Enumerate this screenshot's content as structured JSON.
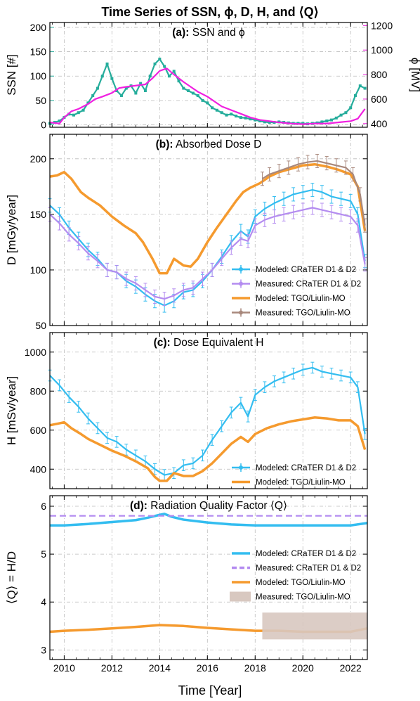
{
  "figure_title": "Time Series of SSN, ϕ, D, H, and ⟨Q⟩",
  "x_axis_label": "Time [Year]",
  "x_tick_labels": [
    "2010",
    "2012",
    "2014",
    "2016",
    "2018",
    "2020",
    "2022"
  ],
  "colors": {
    "ssn": "#26ad9c",
    "phi": "#f020e0",
    "crater_model": "#33bdf0",
    "crater_measured": "#b48cf0",
    "tgo_model": "#f59a2e",
    "tgo_measured": "#a8887c",
    "tgo_q_band": "#d8c8c0"
  },
  "chart_data": [
    {
      "type": "line",
      "panel_title_bold": "(a):",
      "panel_title_text": "SSN and ϕ",
      "xlim": [
        2009.4,
        2022.7
      ],
      "ylabel": "SSN [#]",
      "ylim": [
        -5,
        210
      ],
      "yticks": [
        0,
        50,
        100,
        150,
        200
      ],
      "y2label": "ϕ [MV]",
      "y2lim": [
        370,
        1225
      ],
      "y2ticks": [
        400,
        600,
        800,
        1000,
        1200
      ],
      "series": [
        {
          "key": "ssn",
          "axis": "left",
          "x": [
            2009.4,
            2009.6,
            2009.8,
            2010.0,
            2010.2,
            2010.4,
            2010.6,
            2010.8,
            2011.0,
            2011.2,
            2011.4,
            2011.6,
            2011.8,
            2012.0,
            2012.2,
            2012.4,
            2012.6,
            2012.8,
            2013.0,
            2013.2,
            2013.4,
            2013.6,
            2013.8,
            2014.0,
            2014.2,
            2014.4,
            2014.6,
            2014.8,
            2015.0,
            2015.2,
            2015.4,
            2015.6,
            2015.8,
            2016.0,
            2016.2,
            2016.4,
            2016.6,
            2016.8,
            2017.0,
            2017.2,
            2017.4,
            2017.6,
            2017.8,
            2018.0,
            2018.2,
            2018.4,
            2018.6,
            2018.8,
            2019.0,
            2019.2,
            2019.4,
            2019.6,
            2019.8,
            2020.0,
            2020.2,
            2020.4,
            2020.6,
            2020.8,
            2021.0,
            2021.2,
            2021.4,
            2021.6,
            2021.8,
            2022.0,
            2022.2,
            2022.4,
            2022.6
          ],
          "values": [
            3,
            5,
            8,
            15,
            22,
            20,
            25,
            30,
            45,
            60,
            75,
            100,
            125,
            95,
            70,
            60,
            75,
            80,
            65,
            85,
            70,
            100,
            125,
            135,
            120,
            100,
            110,
            90,
            75,
            70,
            65,
            60,
            50,
            45,
            35,
            30,
            25,
            20,
            22,
            18,
            15,
            14,
            12,
            10,
            8,
            6,
            5,
            5,
            6,
            5,
            4,
            3,
            3,
            3,
            2,
            3,
            4,
            6,
            8,
            10,
            14,
            20,
            25,
            35,
            60,
            80,
            75
          ]
        },
        {
          "key": "phi",
          "axis": "right",
          "x": [
            2009.4,
            2009.8,
            2010.0,
            2010.3,
            2010.6,
            2011.0,
            2011.3,
            2011.6,
            2012.0,
            2012.3,
            2012.6,
            2013.0,
            2013.4,
            2013.7,
            2014.0,
            2014.3,
            2014.6,
            2015.0,
            2015.3,
            2015.6,
            2016.0,
            2016.3,
            2016.6,
            2017.0,
            2017.4,
            2017.8,
            2018.2,
            2018.6,
            2019.0,
            2019.5,
            2020.0,
            2020.5,
            2021.0,
            2021.5,
            2022.0,
            2022.3,
            2022.6
          ],
          "values": [
            410,
            400,
            450,
            500,
            520,
            560,
            600,
            620,
            650,
            690,
            700,
            710,
            720,
            770,
            830,
            850,
            800,
            740,
            700,
            660,
            620,
            580,
            540,
            510,
            480,
            450,
            430,
            420,
            410,
            400,
            395,
            400,
            400,
            410,
            420,
            440,
            520
          ]
        }
      ]
    },
    {
      "type": "line",
      "panel_title_bold": "(b):",
      "panel_title_text": "Absorbed Dose D",
      "xlim": [
        2009.4,
        2022.7
      ],
      "ylabel": "D [mGy/year]",
      "ylim": [
        50,
        222
      ],
      "yticks": [
        50,
        100,
        150,
        200
      ],
      "legend_loc": "lower-right",
      "series": [
        {
          "name": "Modeled: CRaTER D1 & D2",
          "key": "crater_model",
          "errorbars": true,
          "x": [
            2009.4,
            2009.8,
            2010.2,
            2010.6,
            2011.0,
            2011.4,
            2011.8,
            2012.2,
            2012.6,
            2013.0,
            2013.4,
            2013.8,
            2014.2,
            2014.6,
            2015.0,
            2015.4,
            2015.8,
            2016.2,
            2016.6,
            2017.0,
            2017.4,
            2017.7,
            2018.0,
            2018.4,
            2018.8,
            2019.2,
            2019.6,
            2020.0,
            2020.4,
            2020.8,
            2021.2,
            2021.6,
            2022.0,
            2022.3,
            2022.6
          ],
          "values": [
            158,
            150,
            138,
            128,
            118,
            110,
            100,
            98,
            90,
            85,
            78,
            72,
            68,
            72,
            80,
            82,
            90,
            100,
            112,
            125,
            135,
            130,
            148,
            155,
            160,
            164,
            168,
            170,
            172,
            170,
            166,
            164,
            162,
            150,
            108
          ]
        },
        {
          "name": "Measured: CRaTER D1 & D2",
          "key": "crater_measured",
          "errorbars": true,
          "x": [
            2009.4,
            2009.8,
            2010.2,
            2010.6,
            2011.0,
            2011.4,
            2011.8,
            2012.2,
            2012.6,
            2013.0,
            2013.4,
            2013.8,
            2014.2,
            2014.6,
            2015.0,
            2015.4,
            2015.8,
            2016.2,
            2016.6,
            2017.0,
            2017.4,
            2017.7,
            2018.0,
            2018.4,
            2018.8,
            2019.2,
            2019.6,
            2020.0,
            2020.4,
            2020.8,
            2021.2,
            2021.6,
            2022.0,
            2022.3,
            2022.6
          ],
          "values": [
            150,
            142,
            132,
            124,
            115,
            108,
            100,
            98,
            92,
            88,
            82,
            76,
            74,
            77,
            82,
            84,
            92,
            100,
            110,
            120,
            128,
            126,
            140,
            145,
            148,
            150,
            152,
            154,
            156,
            154,
            152,
            150,
            148,
            140,
            105
          ]
        },
        {
          "name": "Modeled: TGO/Liulin-MO",
          "key": "tgo_model",
          "errorbars": false,
          "x": [
            2009.4,
            2009.7,
            2010.0,
            2010.3,
            2010.7,
            2011.0,
            2011.5,
            2012.0,
            2012.5,
            2013.0,
            2013.3,
            2013.7,
            2014.0,
            2014.3,
            2014.6,
            2015.0,
            2015.3,
            2015.6,
            2016.0,
            2016.4,
            2016.8,
            2017.2,
            2017.5,
            2017.8,
            2018.2,
            2018.6,
            2019.0,
            2019.5,
            2020.0,
            2020.5,
            2021.0,
            2021.5,
            2022.0,
            2022.3,
            2022.6
          ],
          "values": [
            184,
            185,
            188,
            182,
            170,
            165,
            158,
            148,
            140,
            133,
            125,
            110,
            97,
            97,
            110,
            104,
            103,
            110,
            125,
            138,
            150,
            162,
            170,
            174,
            178,
            184,
            188,
            191,
            194,
            195,
            193,
            190,
            186,
            175,
            135
          ]
        },
        {
          "name": "Measured: TGO/Liulin-MO",
          "key": "tgo_measured",
          "errorbars": true,
          "x": [
            2018.3,
            2018.6,
            2019.0,
            2019.4,
            2019.8,
            2020.2,
            2020.6,
            2021.0,
            2021.4,
            2021.8,
            2022.1,
            2022.4,
            2022.6
          ],
          "values": [
            182,
            186,
            189,
            192,
            195,
            197,
            198,
            196,
            194,
            192,
            186,
            168,
            140
          ]
        }
      ]
    },
    {
      "type": "line",
      "panel_title_bold": "(c):",
      "panel_title_text": "Dose Equivalent H",
      "xlim": [
        2009.4,
        2022.7
      ],
      "ylabel": "H [mSv/year]",
      "ylim": [
        300,
        1100
      ],
      "yticks": [
        400,
        600,
        800,
        1000
      ],
      "legend_loc": "lower-right",
      "series": [
        {
          "name": "Modeled: CRaTER D1 & D2",
          "key": "crater_model",
          "errorbars": true,
          "x": [
            2009.4,
            2009.8,
            2010.2,
            2010.6,
            2011.0,
            2011.4,
            2011.8,
            2012.2,
            2012.6,
            2013.0,
            2013.4,
            2013.8,
            2014.2,
            2014.6,
            2015.0,
            2015.4,
            2015.8,
            2016.2,
            2016.6,
            2017.0,
            2017.4,
            2017.7,
            2018.0,
            2018.4,
            2018.8,
            2019.2,
            2019.6,
            2020.0,
            2020.4,
            2020.8,
            2021.2,
            2021.6,
            2022.0,
            2022.3,
            2022.6
          ],
          "values": [
            880,
            830,
            770,
            720,
            660,
            610,
            560,
            540,
            500,
            470,
            440,
            400,
            370,
            380,
            420,
            430,
            470,
            550,
            620,
            690,
            740,
            670,
            780,
            820,
            850,
            870,
            890,
            910,
            920,
            900,
            890,
            880,
            870,
            820,
            580
          ]
        },
        {
          "name": "Modeled: TGO/Liulin-MO",
          "key": "tgo_model",
          "errorbars": false,
          "x": [
            2009.4,
            2009.8,
            2010.0,
            2010.3,
            2010.7,
            2011.0,
            2011.5,
            2012.0,
            2012.5,
            2013.0,
            2013.5,
            2013.8,
            2014.0,
            2014.3,
            2014.6,
            2015.0,
            2015.4,
            2015.8,
            2016.2,
            2016.6,
            2017.0,
            2017.4,
            2017.7,
            2018.0,
            2018.5,
            2019.0,
            2019.5,
            2020.0,
            2020.5,
            2021.0,
            2021.5,
            2022.0,
            2022.3,
            2022.6
          ],
          "values": [
            625,
            635,
            640,
            610,
            580,
            555,
            525,
            495,
            470,
            440,
            405,
            360,
            340,
            340,
            380,
            365,
            365,
            390,
            430,
            480,
            530,
            565,
            540,
            580,
            610,
            630,
            645,
            655,
            665,
            660,
            650,
            650,
            620,
            500
          ]
        }
      ]
    },
    {
      "type": "line",
      "panel_title_bold": "(d):",
      "panel_title_text": "Radiation Quality Factor ⟨Q⟩",
      "xlim": [
        2009.4,
        2022.7
      ],
      "ylabel": "⟨Q⟩ = H/D",
      "ylim": [
        2.8,
        6.22
      ],
      "yticks": [
        3,
        4,
        5,
        6
      ],
      "legend_loc": "center-right",
      "series": [
        {
          "name": "Modeled: CRaTER D1 & D2",
          "key": "crater_model",
          "x": [
            2009.4,
            2010.0,
            2011.0,
            2012.0,
            2013.0,
            2013.5,
            2014.0,
            2014.2,
            2014.5,
            2015.0,
            2016.0,
            2017.0,
            2018.0,
            2019.0,
            2020.0,
            2021.0,
            2022.0,
            2022.7
          ],
          "values": [
            5.6,
            5.6,
            5.63,
            5.67,
            5.71,
            5.76,
            5.82,
            5.84,
            5.78,
            5.72,
            5.66,
            5.62,
            5.6,
            5.6,
            5.6,
            5.6,
            5.6,
            5.65
          ]
        },
        {
          "name": "Measured: CRaTER D1 & D2",
          "key": "crater_measured",
          "dashed": true,
          "x": [
            2009.4,
            2022.7
          ],
          "values": [
            5.8,
            5.8
          ]
        },
        {
          "name": "Modeled: TGO/Liulin-MO",
          "key": "tgo_model",
          "x": [
            2009.4,
            2010.0,
            2011.0,
            2012.0,
            2013.0,
            2014.0,
            2015.0,
            2016.0,
            2017.0,
            2018.0,
            2019.0,
            2020.0,
            2021.0,
            2022.0,
            2022.7
          ],
          "values": [
            3.38,
            3.4,
            3.42,
            3.45,
            3.48,
            3.52,
            3.5,
            3.46,
            3.43,
            3.4,
            3.4,
            3.38,
            3.38,
            3.38,
            3.45
          ]
        },
        {
          "name": "Measured: TGO/Liulin-MO",
          "key": "tgo_q_band",
          "band": true,
          "x": [
            2018.3,
            2022.7
          ],
          "low": [
            3.22,
            3.22
          ],
          "high": [
            3.78,
            3.78
          ]
        }
      ]
    }
  ]
}
